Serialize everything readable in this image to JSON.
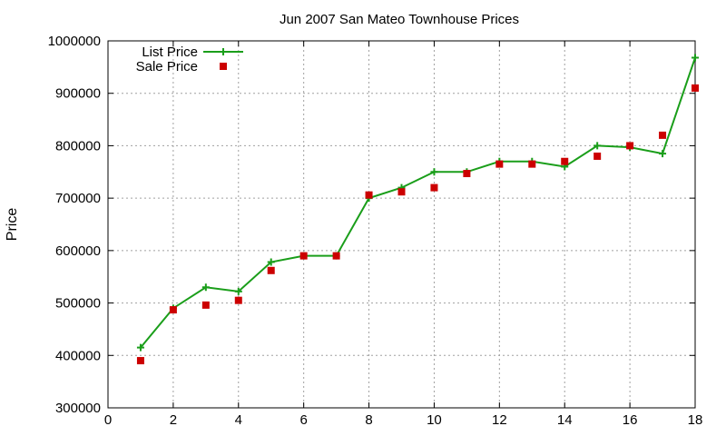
{
  "chart_data": {
    "type": "line",
    "title": "Jun 2007 San Mateo Townhouse Prices",
    "xlabel": "",
    "ylabel": "Price",
    "xlim": [
      0,
      18
    ],
    "ylim": [
      300000,
      1000000
    ],
    "xticks": [
      0,
      2,
      4,
      6,
      8,
      10,
      12,
      14,
      16,
      18
    ],
    "yticks": [
      300000,
      400000,
      500000,
      600000,
      700000,
      800000,
      900000,
      1000000
    ],
    "grid": true,
    "legend_position": "top-left",
    "x": [
      1,
      2,
      3,
      4,
      5,
      6,
      7,
      8,
      9,
      10,
      11,
      12,
      13,
      14,
      15,
      16,
      17,
      18
    ],
    "series": [
      {
        "name": "List Price",
        "style": "line-with-plus-markers",
        "color": "#1a9e1a",
        "values": [
          415000,
          490000,
          530000,
          522000,
          578000,
          590000,
          590000,
          700000,
          720000,
          750000,
          750000,
          770000,
          770000,
          760000,
          800000,
          797000,
          785000,
          968000
        ]
      },
      {
        "name": "Sale Price",
        "style": "square-markers",
        "color": "#cc0000",
        "values": [
          390000,
          487000,
          496000,
          505000,
          562000,
          590000,
          590000,
          706000,
          712000,
          720000,
          747000,
          765000,
          765000,
          770000,
          780000,
          800000,
          820000,
          910000
        ]
      }
    ]
  }
}
